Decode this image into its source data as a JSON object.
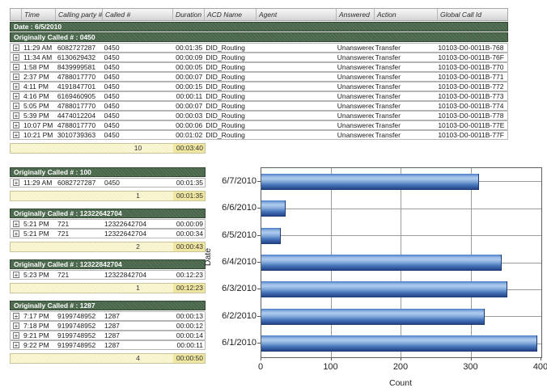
{
  "table": {
    "columns": [
      "",
      "Time",
      "Calling party #",
      "Called #",
      "Duration",
      "ACD Name",
      "Agent",
      "Answered",
      "Action",
      "Global Call Id"
    ],
    "date_group": "Date : 6/5/2010",
    "groups": [
      {
        "label": "Originally Called # : 0450",
        "scope": "full",
        "rows": [
          {
            "time": "11:29 AM",
            "calling_party": "6082727287",
            "called": "0450",
            "duration": "00:01:35",
            "acd_name": "DID_Routing",
            "agent": "",
            "answered": "Unanswered",
            "action": "Transfer",
            "global_call_id": "10103-D0-0011B-768"
          },
          {
            "time": "11:34 AM",
            "calling_party": "6130629432",
            "called": "0450",
            "duration": "00:00:09",
            "acd_name": "DID_Routing",
            "agent": "",
            "answered": "Unanswered",
            "action": "Transfer",
            "global_call_id": "10103-D0-0011B-76F"
          },
          {
            "time": "1:58 PM",
            "calling_party": "8439999581",
            "called": "0450",
            "duration": "00:00:05",
            "acd_name": "DID_Routing",
            "agent": "",
            "answered": "Unanswered",
            "action": "Transfer",
            "global_call_id": "10103-D0-0011B-770"
          },
          {
            "time": "2:37 PM",
            "calling_party": "4788017770",
            "called": "0450",
            "duration": "00:00:07",
            "acd_name": "DID_Routing",
            "agent": "",
            "answered": "Unanswered",
            "action": "Transfer",
            "global_call_id": "10103-D0-0011B-771"
          },
          {
            "time": "4:11 PM",
            "calling_party": "4191847701",
            "called": "0450",
            "duration": "00:00:15",
            "acd_name": "DID_Routing",
            "agent": "",
            "answered": "Unanswered",
            "action": "Transfer",
            "global_call_id": "10103-D0-0011B-772"
          },
          {
            "time": "4:16 PM",
            "calling_party": "6169460905",
            "called": "0450",
            "duration": "00:00:11",
            "acd_name": "DID_Routing",
            "agent": "",
            "answered": "Unanswered",
            "action": "Transfer",
            "global_call_id": "10103-D0-0011B-773"
          },
          {
            "time": "5:05 PM",
            "calling_party": "4788017770",
            "called": "0450",
            "duration": "00:00:07",
            "acd_name": "DID_Routing",
            "agent": "",
            "answered": "Unanswered",
            "action": "Transfer",
            "global_call_id": "10103-D0-0011B-774"
          },
          {
            "time": "5:39 PM",
            "calling_party": "4474012204",
            "called": "0450",
            "duration": "00:00:03",
            "acd_name": "DID_Routing",
            "agent": "",
            "answered": "Unanswered",
            "action": "Transfer",
            "global_call_id": "10103-D0-0011B-778"
          },
          {
            "time": "10:07 PM",
            "calling_party": "4788017770",
            "called": "0450",
            "duration": "00:00:06",
            "acd_name": "DID_Routing",
            "agent": "",
            "answered": "Unanswered",
            "action": "Transfer",
            "global_call_id": "10103-D0-0011B-77E"
          },
          {
            "time": "10:21 PM",
            "calling_party": "3010739363",
            "called": "0450",
            "duration": "00:01:02",
            "acd_name": "DID_Routing",
            "agent": "",
            "answered": "Unanswered",
            "action": "Transfer",
            "global_call_id": "10103-D0-0011B-77F"
          }
        ],
        "summary": {
          "count": "10",
          "total_duration": "00:03:40"
        }
      },
      {
        "label": "Originally Called # : 100",
        "scope": "narrow",
        "rows": [
          {
            "time": "11:29 AM",
            "calling_party": "6082727287",
            "called": "0450",
            "duration": "00:01:35"
          }
        ],
        "summary": {
          "count": "1",
          "total_duration": "00:01:35"
        }
      },
      {
        "label": "Originally Called # : 12322642704",
        "scope": "narrow",
        "rows": [
          {
            "time": "5:21 PM",
            "calling_party": "721",
            "called": "12322642704",
            "duration": "00:00:09"
          },
          {
            "time": "5:21 PM",
            "calling_party": "721",
            "called": "12322642704",
            "duration": "00:00:34"
          }
        ],
        "summary": {
          "count": "2",
          "total_duration": "00:00:43"
        }
      },
      {
        "label": "Originally Called # : 12322842704",
        "scope": "narrow",
        "rows": [
          {
            "time": "5:23 PM",
            "calling_party": "721",
            "called": "12322842704",
            "duration": "00:12:23"
          }
        ],
        "summary": {
          "count": "1",
          "total_duration": "00:12:23"
        }
      },
      {
        "label": "Originally Called # : 1287",
        "scope": "narrow",
        "rows": [
          {
            "time": "7:17 PM",
            "calling_party": "9199748952",
            "called": "1287",
            "duration": "00:00:13"
          },
          {
            "time": "7:18 PM",
            "calling_party": "9199748952",
            "called": "1287",
            "duration": "00:00:12"
          },
          {
            "time": "9:21 PM",
            "calling_party": "9199748952",
            "called": "1287",
            "duration": "00:00:14"
          },
          {
            "time": "9:22 PM",
            "calling_party": "9199748952",
            "called": "1287",
            "duration": "00:00:11"
          }
        ],
        "summary": {
          "count": "4",
          "total_duration": "00:00:50"
        }
      }
    ]
  },
  "icons": {
    "expand": "+"
  },
  "chart_data": {
    "type": "bar",
    "orientation": "horizontal",
    "categories": [
      "6/7/2010",
      "6/6/2010",
      "6/5/2010",
      "6/4/2010",
      "6/3/2010",
      "6/2/2010",
      "6/1/2010"
    ],
    "values": [
      310,
      33,
      27,
      342,
      350,
      318,
      393
    ],
    "xlabel": "Count",
    "ylabel": "Date",
    "xlim": [
      0,
      400
    ],
    "xticks": [
      0,
      100,
      200,
      300,
      400
    ],
    "grid": true,
    "legend": false,
    "bar_color": "#6f9cd8"
  },
  "colors": {
    "group_header_green": "#49654c",
    "summary_yellow": "#f8f4cf",
    "summary_highlight": "#efe6a2",
    "bar_top": "#4a7dc8",
    "bar_highlight": "#aecbee",
    "bar_bottom": "#1d3a74",
    "grid_gray": "#9b9b9b"
  }
}
